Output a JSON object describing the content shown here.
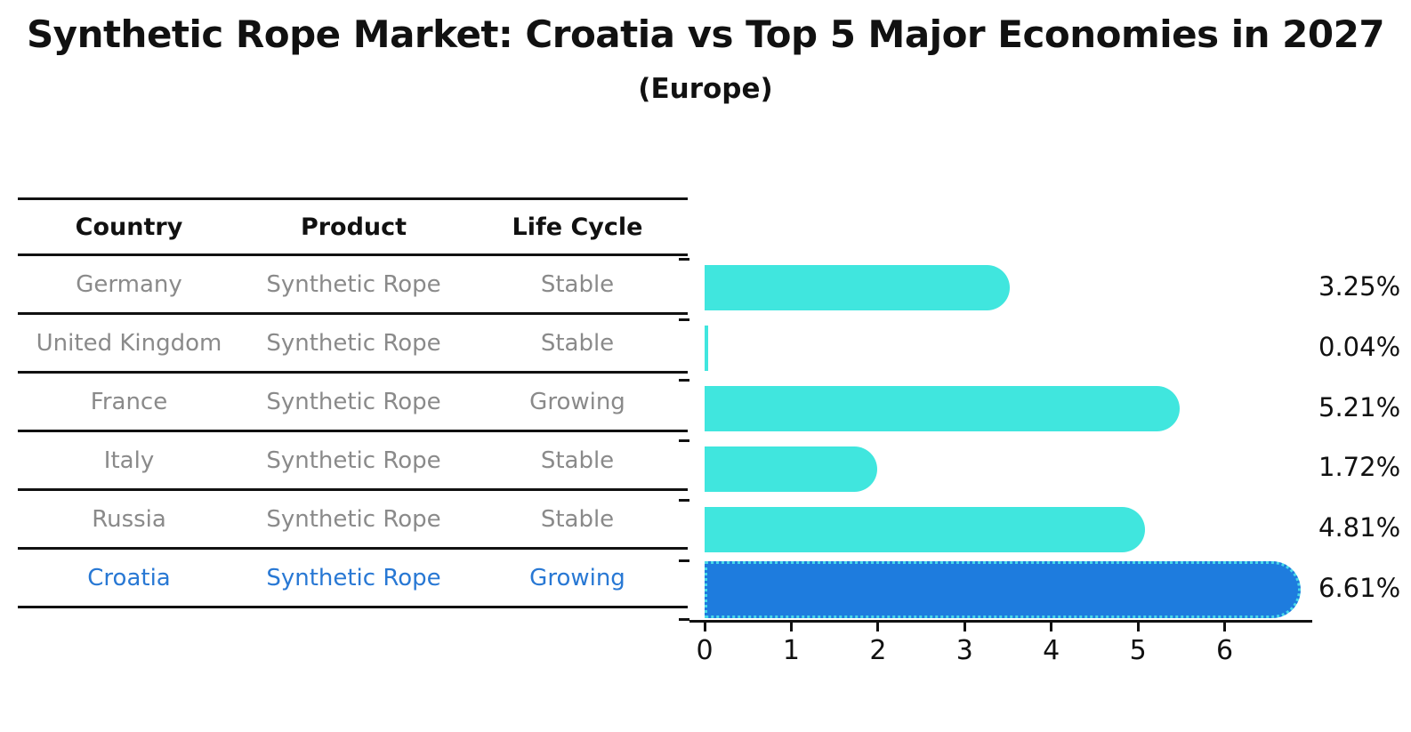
{
  "title": "Synthetic Rope Market: Croatia vs Top 5 Major Economies in 2027",
  "subtitle": "(Europe)",
  "table": {
    "headers": [
      "Country",
      "Product",
      "Life Cycle"
    ],
    "rows": [
      {
        "country": "Germany",
        "product": "Synthetic Rope",
        "life_cycle": "Stable",
        "highlight": false
      },
      {
        "country": "United Kingdom",
        "product": "Synthetic Rope",
        "life_cycle": "Stable",
        "highlight": false
      },
      {
        "country": "France",
        "product": "Synthetic Rope",
        "life_cycle": "Growing",
        "highlight": false
      },
      {
        "country": "Italy",
        "product": "Synthetic Rope",
        "life_cycle": "Stable",
        "highlight": false
      },
      {
        "country": "Russia",
        "product": "Synthetic Rope",
        "life_cycle": "Stable",
        "highlight": false
      },
      {
        "country": "Croatia",
        "product": "Synthetic Rope",
        "life_cycle": "Growing",
        "highlight": true
      }
    ]
  },
  "chart_data": {
    "type": "bar",
    "orientation": "horizontal",
    "title": "Synthetic Rope Market: Croatia vs Top 5 Major Economies in 2027",
    "subtitle": "(Europe)",
    "categories": [
      "Germany",
      "United Kingdom",
      "France",
      "Italy",
      "Russia",
      "Croatia"
    ],
    "values": [
      3.25,
      0.04,
      5.21,
      1.72,
      4.81,
      6.61
    ],
    "value_labels": [
      "3.25%",
      "0.04%",
      "5.21%",
      "1.72%",
      "4.81%",
      "6.61%"
    ],
    "highlight_index": 5,
    "x_ticks": [
      "0",
      "1",
      "2",
      "3",
      "4",
      "5",
      "6"
    ],
    "xlim": [
      0,
      7
    ],
    "xlabel": "",
    "ylabel": "",
    "grid": false,
    "legend": null,
    "bar_color": "#40E6DE",
    "highlight_bar_color": "#1E7CDE",
    "highlight_edge_color": "#49D9E8"
  },
  "colors": {
    "background": "#FFFFFF",
    "text": "#111111",
    "muted_text": "#8A8A8A",
    "highlight_text": "#2878D4",
    "axis_line": "#111111"
  }
}
